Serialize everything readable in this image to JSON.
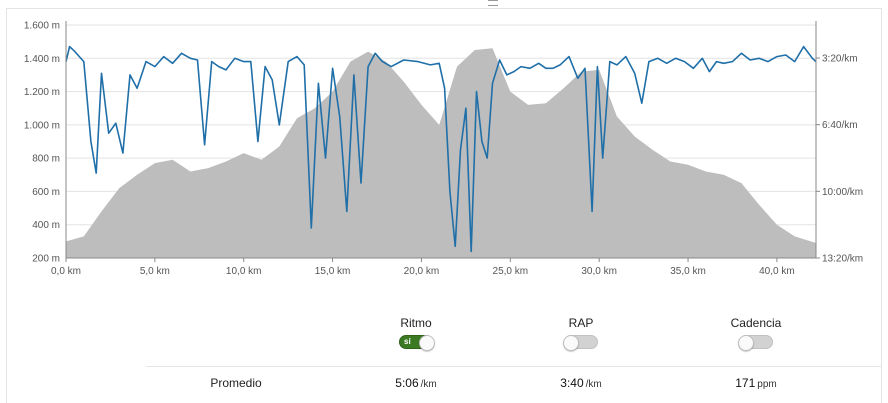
{
  "chart_data": {
    "type": "area",
    "x_ticks": [
      "0,0 km",
      "5,0 km",
      "10,0 km",
      "15,0 km",
      "20,0 km",
      "25,0 km",
      "30,0 km",
      "35,0 km",
      "40,0 km"
    ],
    "xlim": [
      0,
      42.2
    ],
    "y_left_ticks": [
      "1.600 m",
      "1.400 m",
      "1.200 m",
      "1.000 m",
      "800 m",
      "600 m",
      "400 m",
      "200 m"
    ],
    "ylim_left": [
      200,
      1600
    ],
    "y_right_ticks": [
      "3:20/km",
      "6:40/km",
      "10:00/km",
      "13:20/km"
    ],
    "series": [
      {
        "kind": "elevation-area",
        "x": [
          0,
          1,
          2,
          3,
          4,
          5,
          6,
          7,
          8,
          9,
          10,
          11,
          12,
          13,
          14,
          15,
          16,
          17,
          18,
          19,
          20,
          21,
          22,
          23,
          24,
          25,
          26,
          27,
          28,
          29,
          30,
          31,
          32,
          33,
          34,
          35,
          36,
          37,
          38,
          39,
          40,
          41,
          42.2
        ],
        "values": [
          300,
          330,
          480,
          620,
          700,
          770,
          790,
          720,
          740,
          780,
          830,
          790,
          870,
          1040,
          1100,
          1200,
          1380,
          1440,
          1380,
          1260,
          1120,
          1000,
          1350,
          1450,
          1460,
          1200,
          1120,
          1130,
          1220,
          1320,
          1330,
          1050,
          930,
          850,
          780,
          760,
          720,
          700,
          650,
          520,
          400,
          330,
          290
        ],
        "color": "#bdbdbd"
      },
      {
        "kind": "pace-line",
        "x": [
          0,
          0.2,
          0.5,
          1,
          1.4,
          1.7,
          2,
          2.4,
          2.8,
          3.2,
          3.6,
          4,
          4.5,
          5,
          5.5,
          6,
          6.5,
          7,
          7.4,
          7.8,
          8.2,
          8.6,
          9,
          9.5,
          10,
          10.4,
          10.8,
          11.2,
          11.6,
          12,
          12.5,
          13,
          13.4,
          13.8,
          14.2,
          14.6,
          15,
          15.4,
          15.8,
          16.2,
          16.6,
          17,
          17.4,
          17.8,
          18.3,
          19,
          19.8,
          20.5,
          21,
          21.3,
          21.6,
          21.9,
          22.2,
          22.5,
          22.8,
          23.1,
          23.4,
          23.7,
          24,
          24.4,
          24.8,
          25.2,
          25.6,
          26.1,
          26.6,
          27,
          27.4,
          27.8,
          28.3,
          28.8,
          29.2,
          29.6,
          29.9,
          30.2,
          30.6,
          31,
          31.5,
          32,
          32.4,
          32.8,
          33.3,
          33.8,
          34.3,
          34.8,
          35.3,
          35.8,
          36.2,
          36.6,
          37,
          37.5,
          38,
          38.5,
          39,
          39.5,
          40,
          40.5,
          41,
          41.5,
          42,
          42.2
        ],
        "values": [
          1380,
          1470,
          1440,
          1380,
          900,
          710,
          1310,
          950,
          1010,
          830,
          1300,
          1220,
          1380,
          1350,
          1410,
          1370,
          1430,
          1400,
          1390,
          880,
          1380,
          1350,
          1330,
          1400,
          1380,
          1380,
          900,
          1350,
          1270,
          1000,
          1380,
          1410,
          1360,
          380,
          1250,
          800,
          1340,
          1050,
          480,
          1300,
          650,
          1350,
          1430,
          1380,
          1350,
          1390,
          1380,
          1360,
          1370,
          1220,
          600,
          270,
          850,
          1100,
          240,
          1200,
          900,
          800,
          1250,
          1390,
          1300,
          1320,
          1350,
          1340,
          1370,
          1340,
          1340,
          1360,
          1410,
          1280,
          1340,
          480,
          1350,
          800,
          1380,
          1360,
          1410,
          1310,
          1130,
          1380,
          1400,
          1370,
          1400,
          1380,
          1340,
          1400,
          1320,
          1380,
          1370,
          1380,
          1430,
          1390,
          1400,
          1380,
          1410,
          1420,
          1380,
          1470,
          1400,
          1380
        ],
        "color": "#1f6fa8"
      }
    ]
  },
  "controls": {
    "ritmo": {
      "label": "Ritmo",
      "on_text": "sí"
    },
    "rap": {
      "label": "RAP"
    },
    "cadencia": {
      "label": "Cadencia"
    }
  },
  "summary": {
    "label": "Promedio",
    "ritmo_value": "5:06",
    "ritmo_unit": "/km",
    "rap_value": "3:40",
    "rap_unit": "/km",
    "cadencia_value": "171",
    "cadencia_unit": "ppm"
  }
}
